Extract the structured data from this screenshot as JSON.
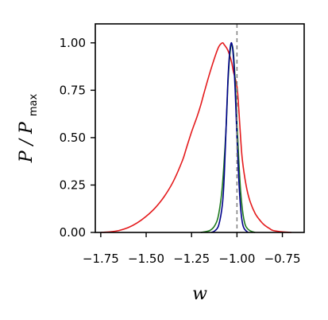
{
  "chart_data": {
    "type": "line",
    "xlabel": "w",
    "ylabel_main": "P / P",
    "ylabel_sub": "max",
    "xlim": [
      -1.78,
      -0.63
    ],
    "ylim": [
      0,
      1.1
    ],
    "xticks": [
      -1.75,
      -1.5,
      -1.25,
      -1.0,
      -0.75
    ],
    "xtick_labels": [
      "−1.75",
      "−1.50",
      "−1.25",
      "−1.00",
      "−0.75"
    ],
    "yticks": [
      0,
      0.25,
      0.5,
      0.75,
      1.0
    ],
    "ytick_labels": [
      "0.00",
      "0.25",
      "0.50",
      "0.75",
      "1.00"
    ],
    "grid": false,
    "reference_line": {
      "x": -1.0,
      "style": "dashed",
      "color": "#808080"
    },
    "series": [
      {
        "color": "#e41a1c",
        "x": [
          -1.75,
          -1.7,
          -1.65,
          -1.6,
          -1.55,
          -1.5,
          -1.45,
          -1.4,
          -1.35,
          -1.3,
          -1.28,
          -1.25,
          -1.22,
          -1.2,
          -1.18,
          -1.15,
          -1.12,
          -1.1,
          -1.08,
          -1.07,
          -1.05,
          -1.03,
          -1.02,
          -1.0,
          -0.99,
          -0.98,
          -0.97,
          -0.95,
          -0.93,
          -0.9,
          -0.87,
          -0.85,
          -0.82,
          -0.8,
          -0.75,
          -0.7
        ],
        "y": [
          0.0,
          0.003,
          0.01,
          0.025,
          0.05,
          0.085,
          0.13,
          0.19,
          0.27,
          0.38,
          0.44,
          0.53,
          0.61,
          0.67,
          0.74,
          0.84,
          0.93,
          0.98,
          1.0,
          0.99,
          0.96,
          0.9,
          0.85,
          0.77,
          0.65,
          0.5,
          0.38,
          0.25,
          0.17,
          0.1,
          0.06,
          0.04,
          0.02,
          0.01,
          0.003,
          0.0
        ]
      },
      {
        "color": "#1f7a1f",
        "x": [
          -1.2,
          -1.15,
          -1.12,
          -1.1,
          -1.08,
          -1.06,
          -1.05,
          -1.04,
          -1.03,
          -1.02,
          -1.01,
          -1.0,
          -0.99,
          -0.98,
          -0.97,
          -0.96,
          -0.95,
          -0.93,
          -0.9
        ],
        "y": [
          0.0,
          0.01,
          0.04,
          0.1,
          0.25,
          0.55,
          0.78,
          0.93,
          0.99,
          0.95,
          0.8,
          0.58,
          0.38,
          0.22,
          0.12,
          0.06,
          0.03,
          0.01,
          0.0
        ]
      },
      {
        "color": "#00008b",
        "x": [
          -1.14,
          -1.12,
          -1.1,
          -1.08,
          -1.07,
          -1.06,
          -1.05,
          -1.04,
          -1.03,
          -1.02,
          -1.01,
          -1.0,
          -0.99,
          -0.98,
          -0.97,
          -0.96,
          -0.94
        ],
        "y": [
          0.0,
          0.01,
          0.04,
          0.15,
          0.3,
          0.55,
          0.8,
          0.95,
          1.0,
          0.93,
          0.75,
          0.5,
          0.28,
          0.13,
          0.05,
          0.02,
          0.0
        ]
      }
    ]
  }
}
